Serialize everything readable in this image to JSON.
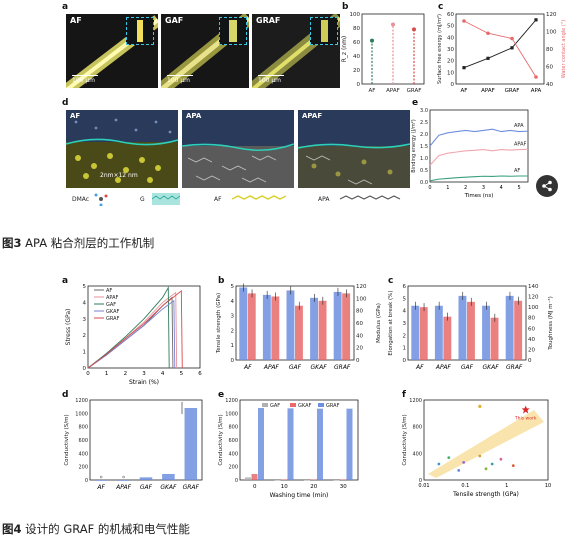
{
  "fig3": {
    "labels": {
      "a": "a",
      "b": "b",
      "c": "c",
      "d": "d",
      "e": "e"
    },
    "micro": [
      {
        "tag": "AF",
        "scale": "100 μm"
      },
      {
        "tag": "GAF",
        "scale": "100 μm"
      },
      {
        "tag": "GRAF",
        "scale": "100 μm"
      }
    ],
    "sim": [
      {
        "tag": "AF",
        "note": "2nm×12 nm"
      },
      {
        "tag": "APA",
        "note": ""
      },
      {
        "tag": "APAF",
        "note": ""
      }
    ],
    "legend": {
      "dmac": "DMAc",
      "g": "G",
      "af": "AF",
      "apa": "APA"
    },
    "caption_bold": "图3",
    "caption_text": " APA 粘合剂层的工作机制"
  },
  "fig4": {
    "labels": {
      "a": "a",
      "b": "b",
      "c": "c",
      "d": "d",
      "e": "e",
      "f": "f"
    },
    "caption_bold": "图4",
    "caption_text": " 设计的 GRAF 的机械和电气性能"
  },
  "colors": {
    "af": "#6a6a6a",
    "apaf": "#e8919a",
    "gaf": "#2e7d5a",
    "gkaf": "#7b7fd1",
    "graf": "#d94a4a",
    "blue": "#6d8fe0",
    "red": "#e86a6a",
    "gray": "#b0b0b0"
  },
  "chart_data": [
    {
      "id": "3b",
      "type": "scatter",
      "categories": [
        "AF",
        "APAF",
        "GRAF"
      ],
      "values": [
        62,
        85,
        78
      ],
      "ylabel": "R_z (nm)",
      "ylim": [
        0,
        100
      ],
      "yticks": [
        "0",
        "20",
        "40",
        "60",
        "80",
        "100"
      ]
    },
    {
      "id": "3c",
      "type": "line",
      "categories": [
        "AF",
        "APAF",
        "GRAF",
        "APA"
      ],
      "series": [
        {
          "name": "Surface free energy",
          "axis": "left",
          "values": [
            14,
            22,
            31,
            55
          ]
        },
        {
          "name": "Water contact angle",
          "axis": "right",
          "values": [
            112,
            98,
            92,
            48
          ]
        }
      ],
      "ylabel": "Surface free energy (mJ/m²)",
      "y2label": "Water contact angle (°)",
      "ylim": [
        0,
        60
      ],
      "y2lim": [
        40,
        120
      ],
      "yticks": [
        "0",
        "10",
        "20",
        "30",
        "40",
        "50",
        "60"
      ],
      "y2ticks": [
        "40",
        "60",
        "80",
        "100",
        "120"
      ]
    },
    {
      "id": "3e",
      "type": "line",
      "x": [
        0,
        0.5,
        1,
        1.5,
        2,
        2.5,
        3,
        3.5,
        4,
        4.5,
        5,
        5.5
      ],
      "series": [
        {
          "name": "APA",
          "values": [
            1.5,
            1.95,
            2.05,
            2.1,
            2.15,
            2.1,
            2.15,
            2.2,
            2.1,
            2.15,
            2.1,
            2.12
          ]
        },
        {
          "name": "APAF",
          "values": [
            0.7,
            1.1,
            1.2,
            1.25,
            1.3,
            1.32,
            1.35,
            1.3,
            1.35,
            1.33,
            1.35,
            1.36
          ]
        },
        {
          "name": "AF",
          "values": [
            0.05,
            0.12,
            0.15,
            0.18,
            0.2,
            0.22,
            0.24,
            0.23,
            0.25,
            0.24,
            0.25,
            0.25
          ]
        }
      ],
      "xlabel": "Times (ns)",
      "ylabel": "Binding energy (J/m²)",
      "xlim": [
        0,
        5.5
      ],
      "ylim": [
        0,
        3
      ],
      "xticks": [
        "0",
        "1",
        "2",
        "3",
        "4",
        "5"
      ],
      "yticks": [
        "0.0",
        "0.5",
        "1.0",
        "1.5",
        "2.0",
        "2.5",
        "3.0"
      ]
    },
    {
      "id": "4a",
      "type": "line",
      "series": [
        {
          "name": "AF",
          "points": [
            [
              0,
              0
            ],
            [
              1,
              0.8
            ],
            [
              2,
              1.7
            ],
            [
              3,
              2.6
            ],
            [
              4,
              3.8
            ],
            [
              4.5,
              4.3
            ],
            [
              4.55,
              0
            ]
          ]
        },
        {
          "name": "APAF",
          "points": [
            [
              0,
              0
            ],
            [
              1,
              0.85
            ],
            [
              2,
              1.8
            ],
            [
              3,
              2.8
            ],
            [
              4,
              4.0
            ],
            [
              4.7,
              4.6
            ],
            [
              4.75,
              0
            ]
          ]
        },
        {
          "name": "GAF",
          "points": [
            [
              0,
              0
            ],
            [
              1,
              0.9
            ],
            [
              2,
              1.9
            ],
            [
              3,
              3.0
            ],
            [
              4,
              4.3
            ],
            [
              4.3,
              4.9
            ],
            [
              4.35,
              0
            ]
          ]
        },
        {
          "name": "GKAF",
          "points": [
            [
              0,
              0
            ],
            [
              1,
              0.8
            ],
            [
              2,
              1.7
            ],
            [
              3,
              2.6
            ],
            [
              4,
              3.6
            ],
            [
              4.6,
              4.1
            ],
            [
              4.65,
              0
            ]
          ]
        },
        {
          "name": "GRAF",
          "points": [
            [
              0,
              0
            ],
            [
              1,
              0.85
            ],
            [
              2,
              1.8
            ],
            [
              3,
              2.7
            ],
            [
              4,
              3.8
            ],
            [
              5,
              4.7
            ],
            [
              5.05,
              0
            ]
          ]
        }
      ],
      "xlabel": "Strain (%)",
      "ylabel": "Stress (GPa)",
      "xlim": [
        0,
        6
      ],
      "ylim": [
        0,
        5
      ],
      "xticks": [
        "0",
        "1",
        "2",
        "3",
        "4",
        "5",
        "6"
      ],
      "yticks": [
        "0",
        "1",
        "2",
        "3",
        "4",
        "5"
      ]
    },
    {
      "id": "4b",
      "type": "bar",
      "categories": [
        "AF",
        "APAF",
        "GAF",
        "GKAF",
        "GRAF"
      ],
      "series": [
        {
          "name": "Tensile strength",
          "axis": "left",
          "values": [
            4.9,
            4.4,
            4.7,
            4.2,
            4.6
          ]
        },
        {
          "name": "Modulus",
          "axis": "right",
          "values": [
            108,
            103,
            88,
            96,
            108
          ]
        }
      ],
      "ylabel": "Tensile strength (GPa)",
      "y2label": "Modulus (GPa)",
      "ylim": [
        0,
        5
      ],
      "y2lim": [
        0,
        120
      ],
      "yticks": [
        "0",
        "1",
        "2",
        "3",
        "4",
        "5"
      ],
      "y2ticks": [
        "0",
        "20",
        "40",
        "60",
        "80",
        "100",
        "120"
      ]
    },
    {
      "id": "4c",
      "type": "bar",
      "categories": [
        "AF",
        "APAF",
        "GAF",
        "GKAF",
        "GRAF"
      ],
      "series": [
        {
          "name": "Elongation at break",
          "axis": "left",
          "values": [
            4.4,
            4.4,
            5.2,
            4.4,
            5.2
          ]
        },
        {
          "name": "Toughness",
          "axis": "right",
          "values": [
            100,
            82,
            110,
            80,
            112
          ]
        }
      ],
      "ylabel": "Elongation at break (%)",
      "y2label": "Toughness (MJ m⁻³)",
      "ylim": [
        0,
        6
      ],
      "y2lim": [
        0,
        140
      ],
      "yticks": [
        "0",
        "1",
        "2",
        "3",
        "4",
        "5",
        "6"
      ],
      "y2ticks": [
        "0",
        "20",
        "40",
        "60",
        "80",
        "100",
        "120",
        "140"
      ]
    },
    {
      "id": "4d",
      "type": "bar",
      "categories": [
        "AF",
        "APAF",
        "GAF",
        "GKAF",
        "GRAF"
      ],
      "values": [
        0,
        0,
        40,
        90,
        1080
      ],
      "ylabel": "Conductivity (S/m)",
      "ylim": [
        0,
        1200
      ],
      "yticks": [
        "0",
        "200",
        "400",
        "600",
        "800",
        "1000",
        "1200"
      ]
    },
    {
      "id": "4e",
      "type": "bar",
      "categories": [
        "0",
        "10",
        "20",
        "30"
      ],
      "series": [
        {
          "name": "GAF",
          "values": [
            40,
            0,
            0,
            0
          ]
        },
        {
          "name": "GKAF",
          "values": [
            90,
            8,
            8,
            8
          ]
        },
        {
          "name": "GRAF",
          "values": [
            1080,
            1075,
            1070,
            1070
          ]
        }
      ],
      "xlabel": "Washing time (min)",
      "ylabel": "Conductivity (S/m)",
      "ylim": [
        0,
        1200
      ],
      "yticks": [
        "0",
        "200",
        "400",
        "600",
        "800",
        "1000",
        "1200"
      ]
    },
    {
      "id": "4f",
      "type": "scatter",
      "xlabel": "Tensile strength (GPa)",
      "ylabel": "Conductivity (S/m)",
      "xticks": [
        "0.01",
        "0.1",
        "1",
        "10"
      ],
      "yticks": [
        "0",
        "400",
        "800",
        "1200"
      ],
      "marker_label": "This work"
    }
  ]
}
